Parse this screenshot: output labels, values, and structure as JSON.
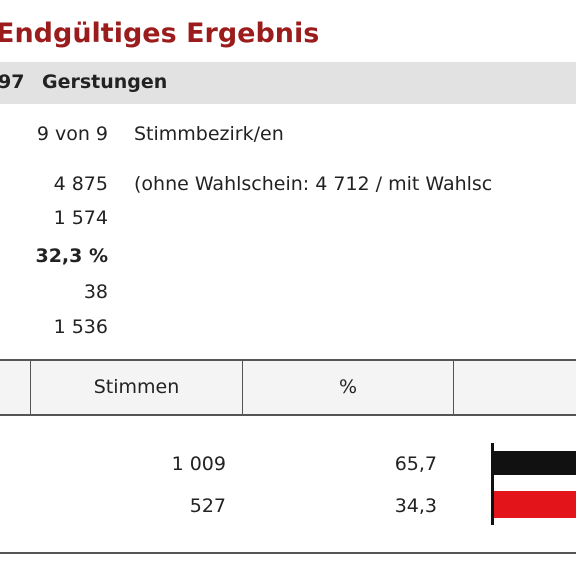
{
  "header": {
    "title": "Endgültiges Ergebnis",
    "number": "97",
    "name": "Gerstungen"
  },
  "summary": [
    {
      "value": "9 von 9",
      "note": "Stimmbezirk/en"
    },
    {
      "value": "4 875",
      "note": "(ohne Wahlschein: 4 712 / mit Wahlsc"
    },
    {
      "value": "1 574"
    },
    {
      "value": "32,3 %"
    },
    {
      "value": "38"
    },
    {
      "value": "1 536"
    }
  ],
  "table": {
    "header": [
      "Stimmen",
      "%"
    ],
    "rows": [
      [
        "1 009",
        "65,7"
      ],
      [
        "527",
        "34,3"
      ]
    ]
  }
}
